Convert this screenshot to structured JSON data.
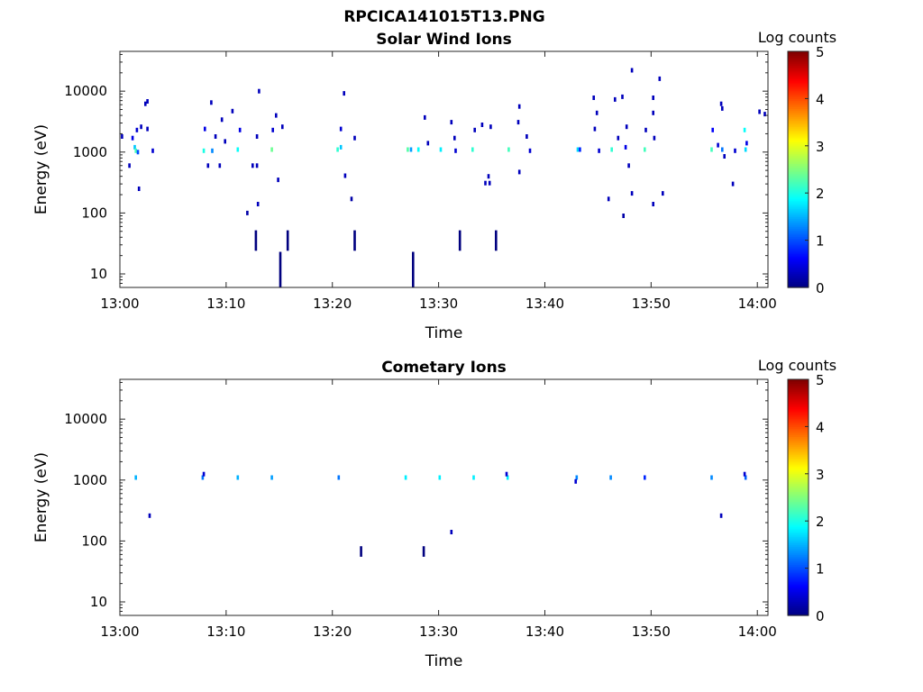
{
  "figure": {
    "title": "RPCICA141015T13.PNG"
  },
  "colormap": {
    "stops": [
      "#00007f",
      "#0000ff",
      "#007fff",
      "#00ffff",
      "#7fff7f",
      "#ffff00",
      "#ff7f00",
      "#ff0000",
      "#7f0000"
    ]
  },
  "chart_data": [
    {
      "type": "heatmap",
      "title": "Solar Wind Ions",
      "xlabel": "Time",
      "ylabel": "Energy (eV)",
      "y_scale": "log",
      "ylim": [
        6,
        45000
      ],
      "xlim_minutes": [
        0,
        61
      ],
      "x_ticks": [
        "13:00",
        "13:10",
        "13:20",
        "13:30",
        "13:40",
        "13:50",
        "14:00"
      ],
      "y_ticks": [
        "10",
        "100",
        "1000",
        "10000"
      ],
      "colorbar": {
        "label": "Log counts",
        "range": [
          0,
          5
        ],
        "ticks": [
          "0",
          "1",
          "2",
          "3",
          "4",
          "5"
        ]
      },
      "points": [
        {
          "t": 0.2,
          "e": 1800,
          "v": 0.3
        },
        {
          "t": 0.9,
          "e": 600,
          "v": 0.3
        },
        {
          "t": 1.2,
          "e": 1700,
          "v": 0.5
        },
        {
          "t": 1.4,
          "e": 1200,
          "v": 1.6
        },
        {
          "t": 1.5,
          "e": 1050,
          "v": 2.2
        },
        {
          "t": 1.6,
          "e": 2300,
          "v": 0.4
        },
        {
          "t": 1.7,
          "e": 1000,
          "v": 1.0
        },
        {
          "t": 1.8,
          "e": 250,
          "v": 0.3
        },
        {
          "t": 2.0,
          "e": 2600,
          "v": 0.3
        },
        {
          "t": 2.4,
          "e": 6200,
          "v": 0.3
        },
        {
          "t": 2.6,
          "e": 6800,
          "v": 0.3
        },
        {
          "t": 2.6,
          "e": 2400,
          "v": 0.3
        },
        {
          "t": 3.1,
          "e": 1050,
          "v": 0.4
        },
        {
          "t": 7.9,
          "e": 1050,
          "v": 2.0
        },
        {
          "t": 8.0,
          "e": 2400,
          "v": 0.5
        },
        {
          "t": 8.3,
          "e": 600,
          "v": 0.3
        },
        {
          "t": 8.6,
          "e": 6500,
          "v": 0.3
        },
        {
          "t": 8.7,
          "e": 1050,
          "v": 1.3
        },
        {
          "t": 9.0,
          "e": 1800,
          "v": 0.3
        },
        {
          "t": 9.4,
          "e": 600,
          "v": 0.3
        },
        {
          "t": 9.6,
          "e": 3400,
          "v": 0.3
        },
        {
          "t": 9.9,
          "e": 1500,
          "v": 0.3
        },
        {
          "t": 10.6,
          "e": 4700,
          "v": 0.3
        },
        {
          "t": 11.1,
          "e": 1100,
          "v": 1.9
        },
        {
          "t": 11.3,
          "e": 2300,
          "v": 0.5
        },
        {
          "t": 12.0,
          "e": 100,
          "v": 0.2
        },
        {
          "t": 12.5,
          "e": 600,
          "v": 0.3
        },
        {
          "t": 12.9,
          "e": 600,
          "v": 0.3
        },
        {
          "t": 12.9,
          "e": 1800,
          "v": 0.3
        },
        {
          "t": 13.1,
          "e": 10000,
          "v": 0.3
        },
        {
          "t": 13.0,
          "e": 140,
          "v": 0.3
        },
        {
          "t": 14.3,
          "e": 1100,
          "v": 2.4
        },
        {
          "t": 14.4,
          "e": 2300,
          "v": 0.4
        },
        {
          "t": 14.7,
          "e": 4000,
          "v": 0.3
        },
        {
          "t": 14.9,
          "e": 350,
          "v": 0.3
        },
        {
          "t": 15.3,
          "e": 2600,
          "v": 0.3
        },
        {
          "t": 20.5,
          "e": 1100,
          "v": 2.1
        },
        {
          "t": 20.8,
          "e": 2400,
          "v": 0.4
        },
        {
          "t": 20.8,
          "e": 1200,
          "v": 1.6
        },
        {
          "t": 21.1,
          "e": 9200,
          "v": 0.3
        },
        {
          "t": 21.2,
          "e": 410,
          "v": 0.3
        },
        {
          "t": 21.8,
          "e": 170,
          "v": 0.2
        },
        {
          "t": 22.1,
          "e": 1700,
          "v": 0.3
        },
        {
          "t": 27.1,
          "e": 1100,
          "v": 2.3
        },
        {
          "t": 27.4,
          "e": 1100,
          "v": 1.4
        },
        {
          "t": 28.1,
          "e": 1100,
          "v": 1.9
        },
        {
          "t": 28.7,
          "e": 3700,
          "v": 0.3
        },
        {
          "t": 29.0,
          "e": 1400,
          "v": 0.3
        },
        {
          "t": 30.2,
          "e": 1100,
          "v": 1.8
        },
        {
          "t": 31.2,
          "e": 3100,
          "v": 0.3
        },
        {
          "t": 31.5,
          "e": 1700,
          "v": 0.3
        },
        {
          "t": 31.6,
          "e": 1050,
          "v": 0.4
        },
        {
          "t": 33.2,
          "e": 1100,
          "v": 2.1
        },
        {
          "t": 33.4,
          "e": 2300,
          "v": 0.3
        },
        {
          "t": 34.1,
          "e": 2800,
          "v": 0.3
        },
        {
          "t": 34.4,
          "e": 310,
          "v": 0.3
        },
        {
          "t": 34.7,
          "e": 400,
          "v": 0.3
        },
        {
          "t": 34.8,
          "e": 310,
          "v": 0.3
        },
        {
          "t": 34.9,
          "e": 2600,
          "v": 0.3
        },
        {
          "t": 36.6,
          "e": 1100,
          "v": 2.2
        },
        {
          "t": 37.5,
          "e": 3100,
          "v": 0.3
        },
        {
          "t": 37.6,
          "e": 5600,
          "v": 0.3
        },
        {
          "t": 37.6,
          "e": 470,
          "v": 0.3
        },
        {
          "t": 38.3,
          "e": 1800,
          "v": 0.3
        },
        {
          "t": 38.6,
          "e": 1050,
          "v": 0.4
        },
        {
          "t": 43.1,
          "e": 1100,
          "v": 1.7
        },
        {
          "t": 43.3,
          "e": 1100,
          "v": 0.8
        },
        {
          "t": 44.6,
          "e": 7800,
          "v": 0.3
        },
        {
          "t": 44.7,
          "e": 2400,
          "v": 0.3
        },
        {
          "t": 44.9,
          "e": 4400,
          "v": 0.3
        },
        {
          "t": 45.1,
          "e": 1050,
          "v": 0.4
        },
        {
          "t": 46.0,
          "e": 170,
          "v": 0.3
        },
        {
          "t": 46.3,
          "e": 1100,
          "v": 2.1
        },
        {
          "t": 46.6,
          "e": 7300,
          "v": 0.3
        },
        {
          "t": 46.9,
          "e": 1700,
          "v": 0.3
        },
        {
          "t": 47.3,
          "e": 8100,
          "v": 0.3
        },
        {
          "t": 47.4,
          "e": 90,
          "v": 0.2
        },
        {
          "t": 47.6,
          "e": 1200,
          "v": 0.5
        },
        {
          "t": 47.7,
          "e": 2600,
          "v": 0.3
        },
        {
          "t": 47.9,
          "e": 600,
          "v": 0.3
        },
        {
          "t": 48.2,
          "e": 22000,
          "v": 0.3
        },
        {
          "t": 48.2,
          "e": 210,
          "v": 0.3
        },
        {
          "t": 49.4,
          "e": 1100,
          "v": 2.2
        },
        {
          "t": 49.5,
          "e": 2300,
          "v": 0.3
        },
        {
          "t": 50.2,
          "e": 7800,
          "v": 0.3
        },
        {
          "t": 50.2,
          "e": 4400,
          "v": 0.3
        },
        {
          "t": 50.2,
          "e": 140,
          "v": 0.3
        },
        {
          "t": 50.3,
          "e": 1700,
          "v": 0.3
        },
        {
          "t": 50.8,
          "e": 16000,
          "v": 0.3
        },
        {
          "t": 51.1,
          "e": 210,
          "v": 0.3
        },
        {
          "t": 55.7,
          "e": 1100,
          "v": 2.2
        },
        {
          "t": 55.8,
          "e": 2300,
          "v": 0.6
        },
        {
          "t": 56.3,
          "e": 1300,
          "v": 0.4
        },
        {
          "t": 56.6,
          "e": 6200,
          "v": 0.3
        },
        {
          "t": 56.7,
          "e": 5200,
          "v": 0.3
        },
        {
          "t": 56.7,
          "e": 1100,
          "v": 1.2
        },
        {
          "t": 56.9,
          "e": 850,
          "v": 0.3
        },
        {
          "t": 57.7,
          "e": 300,
          "v": 0.3
        },
        {
          "t": 57.9,
          "e": 1050,
          "v": 0.4
        },
        {
          "t": 58.8,
          "e": 2300,
          "v": 1.9
        },
        {
          "t": 58.9,
          "e": 1100,
          "v": 1.7
        },
        {
          "t": 59.0,
          "e": 1400,
          "v": 0.5
        },
        {
          "t": 60.2,
          "e": 4600,
          "v": 0.3
        },
        {
          "t": 60.7,
          "e": 4200,
          "v": 0.3
        }
      ],
      "spikes": [
        {
          "t": 12.8,
          "e_lo": 24,
          "e_hi": 52
        },
        {
          "t": 15.1,
          "e_lo": 5.5,
          "e_hi": 23
        },
        {
          "t": 15.8,
          "e_lo": 24,
          "e_hi": 52
        },
        {
          "t": 22.1,
          "e_lo": 24,
          "e_hi": 52
        },
        {
          "t": 27.6,
          "e_lo": 5.5,
          "e_hi": 23
        },
        {
          "t": 32.0,
          "e_lo": 24,
          "e_hi": 52
        },
        {
          "t": 35.4,
          "e_lo": 24,
          "e_hi": 52
        }
      ]
    },
    {
      "type": "heatmap",
      "title": "Cometary Ions",
      "xlabel": "Time",
      "ylabel": "Energy (eV)",
      "y_scale": "log",
      "ylim": [
        6,
        45000
      ],
      "xlim_minutes": [
        0,
        61
      ],
      "x_ticks": [
        "13:00",
        "13:10",
        "13:20",
        "13:30",
        "13:40",
        "13:50",
        "14:00"
      ],
      "y_ticks": [
        "10",
        "100",
        "1000",
        "10000"
      ],
      "colorbar": {
        "label": "Log counts",
        "range": [
          0,
          5
        ],
        "ticks": [
          "0",
          "1",
          "2",
          "3",
          "4",
          "5"
        ]
      },
      "points": [
        {
          "t": 1.5,
          "e": 1100,
          "v": 1.5
        },
        {
          "t": 2.8,
          "e": 260,
          "v": 0.3
        },
        {
          "t": 7.8,
          "e": 1100,
          "v": 1.2
        },
        {
          "t": 7.9,
          "e": 1250,
          "v": 0.4
        },
        {
          "t": 11.1,
          "e": 1100,
          "v": 1.5
        },
        {
          "t": 14.3,
          "e": 1100,
          "v": 1.4
        },
        {
          "t": 20.6,
          "e": 1100,
          "v": 1.2
        },
        {
          "t": 26.9,
          "e": 1100,
          "v": 1.8
        },
        {
          "t": 30.1,
          "e": 1100,
          "v": 1.8
        },
        {
          "t": 31.2,
          "e": 140,
          "v": 0.3
        },
        {
          "t": 33.3,
          "e": 1100,
          "v": 1.8
        },
        {
          "t": 36.5,
          "e": 1100,
          "v": 1.8
        },
        {
          "t": 36.4,
          "e": 1250,
          "v": 0.4
        },
        {
          "t": 43.0,
          "e": 1100,
          "v": 1.3
        },
        {
          "t": 42.9,
          "e": 950,
          "v": 0.4
        },
        {
          "t": 46.2,
          "e": 1100,
          "v": 1.3
        },
        {
          "t": 49.4,
          "e": 1100,
          "v": 0.8
        },
        {
          "t": 55.7,
          "e": 1100,
          "v": 1.3
        },
        {
          "t": 56.6,
          "e": 260,
          "v": 0.3
        },
        {
          "t": 58.9,
          "e": 1100,
          "v": 1.1
        },
        {
          "t": 58.8,
          "e": 1250,
          "v": 0.4
        }
      ],
      "spikes": [
        {
          "t": 22.7,
          "e_lo": 55,
          "e_hi": 82
        },
        {
          "t": 28.6,
          "e_lo": 55,
          "e_hi": 82
        }
      ]
    }
  ]
}
